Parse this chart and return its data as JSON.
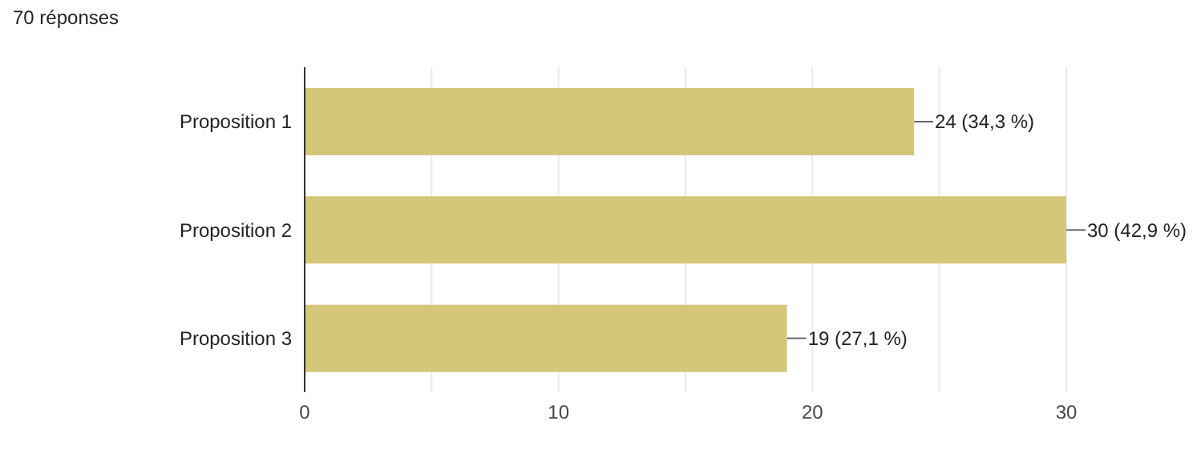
{
  "chart_data": {
    "type": "bar",
    "orientation": "horizontal",
    "title": "70 réponses",
    "categories": [
      "Proposition 1",
      "Proposition 2",
      "Proposition 3"
    ],
    "values": [
      24,
      30,
      19
    ],
    "color": "#d4c77a",
    "value_labels": [
      "24 (34,3 %)",
      "30 (42,9 %)",
      "19 (27,1 %)"
    ],
    "xlim": [
      0,
      30
    ],
    "xticks": [
      0,
      {
        "value": 5,
        "label": null
      },
      10,
      {
        "value": 15,
        "label": null
      },
      20,
      {
        "value": 25,
        "label": null
      },
      30
    ],
    "grid": "x",
    "legend": false
  }
}
